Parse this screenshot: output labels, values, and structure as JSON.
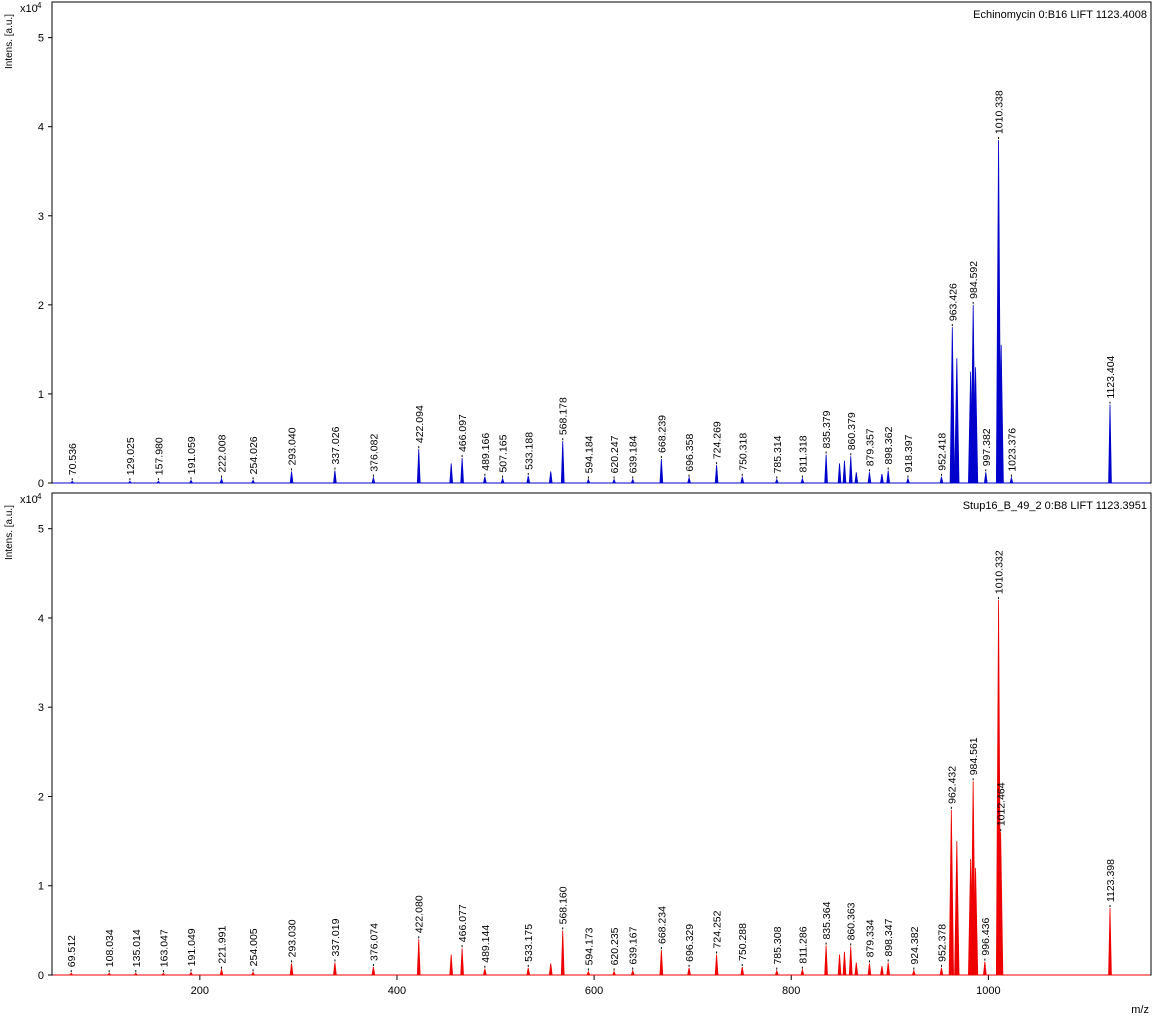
{
  "chart_data": [
    {
      "type": "line",
      "title": "Echinomycin 0:B16 LIFT 1123.4008",
      "ylabel": "Intens. [a.u.]",
      "y_multiplier": "x10",
      "y_multiplier_exp": "4",
      "xlim": [
        50,
        1165
      ],
      "ylim": [
        0,
        5.4
      ],
      "yticks": [
        0,
        1,
        2,
        3,
        4,
        5
      ],
      "color": "#0000cc",
      "peaks": [
        {
          "x": 70.536,
          "y": 0.02,
          "label": "70.536"
        },
        {
          "x": 129.025,
          "y": 0.02,
          "label": "129.025"
        },
        {
          "x": 157.98,
          "y": 0.02,
          "label": "157.980"
        },
        {
          "x": 191.059,
          "y": 0.03,
          "label": "191.059"
        },
        {
          "x": 222.008,
          "y": 0.05,
          "label": "222.008"
        },
        {
          "x": 254.026,
          "y": 0.03,
          "label": "254.026"
        },
        {
          "x": 293.04,
          "y": 0.13,
          "label": "293.040"
        },
        {
          "x": 337.026,
          "y": 0.14,
          "label": "337.026"
        },
        {
          "x": 376.082,
          "y": 0.06,
          "label": "376.082"
        },
        {
          "x": 422.094,
          "y": 0.38,
          "label": "422.094"
        },
        {
          "x": 455.0,
          "y": 0.22,
          "label": ""
        },
        {
          "x": 466.097,
          "y": 0.28,
          "label": "466.097"
        },
        {
          "x": 489.166,
          "y": 0.07,
          "label": "489.166"
        },
        {
          "x": 507.165,
          "y": 0.05,
          "label": "507.165"
        },
        {
          "x": 533.188,
          "y": 0.08,
          "label": "533.188"
        },
        {
          "x": 556.0,
          "y": 0.13,
          "label": ""
        },
        {
          "x": 568.178,
          "y": 0.47,
          "label": "568.178"
        },
        {
          "x": 594.184,
          "y": 0.04,
          "label": "594.184"
        },
        {
          "x": 620.247,
          "y": 0.04,
          "label": "620.247"
        },
        {
          "x": 639.184,
          "y": 0.04,
          "label": "639.184"
        },
        {
          "x": 668.239,
          "y": 0.27,
          "label": "668.239"
        },
        {
          "x": 696.358,
          "y": 0.06,
          "label": "696.358"
        },
        {
          "x": 724.269,
          "y": 0.2,
          "label": "724.269"
        },
        {
          "x": 750.318,
          "y": 0.07,
          "label": "750.318"
        },
        {
          "x": 785.314,
          "y": 0.04,
          "label": "785.314"
        },
        {
          "x": 811.318,
          "y": 0.05,
          "label": "811.318"
        },
        {
          "x": 835.379,
          "y": 0.32,
          "label": "835.379"
        },
        {
          "x": 849.0,
          "y": 0.22,
          "label": ""
        },
        {
          "x": 854.0,
          "y": 0.25,
          "label": ""
        },
        {
          "x": 860.379,
          "y": 0.3,
          "label": "860.379"
        },
        {
          "x": 866.0,
          "y": 0.12,
          "label": ""
        },
        {
          "x": 879.357,
          "y": 0.12,
          "label": "879.357"
        },
        {
          "x": 892.0,
          "y": 0.1,
          "label": ""
        },
        {
          "x": 898.362,
          "y": 0.14,
          "label": "898.362"
        },
        {
          "x": 918.397,
          "y": 0.05,
          "label": "918.397"
        },
        {
          "x": 952.418,
          "y": 0.07,
          "label": "952.418"
        },
        {
          "x": 963.426,
          "y": 1.75,
          "label": "963.426"
        },
        {
          "x": 968.0,
          "y": 1.4,
          "label": ""
        },
        {
          "x": 982.0,
          "y": 1.25,
          "label": ""
        },
        {
          "x": 984.592,
          "y": 2.0,
          "label": "984.592"
        },
        {
          "x": 987.0,
          "y": 1.3,
          "label": ""
        },
        {
          "x": 997.382,
          "y": 0.12,
          "label": "997.382"
        },
        {
          "x": 1010.338,
          "y": 3.85,
          "label": "1010.338"
        },
        {
          "x": 1013.0,
          "y": 1.55,
          "label": ""
        },
        {
          "x": 1023.376,
          "y": 0.06,
          "label": "1023.376"
        },
        {
          "x": 1123.404,
          "y": 0.88,
          "label": "1123.404"
        }
      ]
    },
    {
      "type": "line",
      "title": "Stup16_B_49_2 0:B8 LIFT 1123.3951",
      "ylabel": "Intens. [a.u.]",
      "y_multiplier": "x10",
      "y_multiplier_exp": "4",
      "xlabel": "m/z",
      "xlim": [
        50,
        1165
      ],
      "ylim": [
        0,
        5.4
      ],
      "yticks": [
        0,
        1,
        2,
        3,
        4,
        5
      ],
      "xticks": [
        200,
        400,
        600,
        800,
        1000
      ],
      "color": "#ee0000",
      "peaks": [
        {
          "x": 69.512,
          "y": 0.02,
          "label": "69.512"
        },
        {
          "x": 108.034,
          "y": 0.02,
          "label": "108.034"
        },
        {
          "x": 135.014,
          "y": 0.02,
          "label": "135.014"
        },
        {
          "x": 163.047,
          "y": 0.02,
          "label": "163.047"
        },
        {
          "x": 191.049,
          "y": 0.03,
          "label": "191.049"
        },
        {
          "x": 221.991,
          "y": 0.06,
          "label": "221.991"
        },
        {
          "x": 254.005,
          "y": 0.03,
          "label": "254.005"
        },
        {
          "x": 293.03,
          "y": 0.13,
          "label": "293.030"
        },
        {
          "x": 337.019,
          "y": 0.14,
          "label": "337.019"
        },
        {
          "x": 376.074,
          "y": 0.09,
          "label": "376.074"
        },
        {
          "x": 422.08,
          "y": 0.4,
          "label": "422.080"
        },
        {
          "x": 455.0,
          "y": 0.23,
          "label": ""
        },
        {
          "x": 466.077,
          "y": 0.3,
          "label": "466.077"
        },
        {
          "x": 489.144,
          "y": 0.07,
          "label": "489.144"
        },
        {
          "x": 533.175,
          "y": 0.08,
          "label": "533.175"
        },
        {
          "x": 556.0,
          "y": 0.13,
          "label": ""
        },
        {
          "x": 568.16,
          "y": 0.5,
          "label": "568.160"
        },
        {
          "x": 594.173,
          "y": 0.04,
          "label": "594.173"
        },
        {
          "x": 620.235,
          "y": 0.04,
          "label": "620.235"
        },
        {
          "x": 639.167,
          "y": 0.05,
          "label": "639.167"
        },
        {
          "x": 668.234,
          "y": 0.28,
          "label": "668.234"
        },
        {
          "x": 696.329,
          "y": 0.08,
          "label": "696.329"
        },
        {
          "x": 724.252,
          "y": 0.23,
          "label": "724.252"
        },
        {
          "x": 750.288,
          "y": 0.09,
          "label": "750.288"
        },
        {
          "x": 785.308,
          "y": 0.05,
          "label": "785.308"
        },
        {
          "x": 811.286,
          "y": 0.06,
          "label": "811.286"
        },
        {
          "x": 835.364,
          "y": 0.33,
          "label": "835.364"
        },
        {
          "x": 849.0,
          "y": 0.23,
          "label": ""
        },
        {
          "x": 854.0,
          "y": 0.26,
          "label": ""
        },
        {
          "x": 860.363,
          "y": 0.32,
          "label": "860.363"
        },
        {
          "x": 866.0,
          "y": 0.14,
          "label": ""
        },
        {
          "x": 879.334,
          "y": 0.13,
          "label": "879.334"
        },
        {
          "x": 892.0,
          "y": 0.1,
          "label": ""
        },
        {
          "x": 898.347,
          "y": 0.14,
          "label": "898.347"
        },
        {
          "x": 924.382,
          "y": 0.05,
          "label": "924.382"
        },
        {
          "x": 952.378,
          "y": 0.08,
          "label": "952.378"
        },
        {
          "x": 962.432,
          "y": 1.85,
          "label": "962.432"
        },
        {
          "x": 968.0,
          "y": 1.5,
          "label": ""
        },
        {
          "x": 982.0,
          "y": 1.3,
          "label": ""
        },
        {
          "x": 984.561,
          "y": 2.17,
          "label": "984.561"
        },
        {
          "x": 987.0,
          "y": 1.2,
          "label": ""
        },
        {
          "x": 996.436,
          "y": 0.15,
          "label": "996.436"
        },
        {
          "x": 1010.332,
          "y": 4.2,
          "label": "1010.332"
        },
        {
          "x": 1012.464,
          "y": 1.6,
          "label": "1012.464"
        },
        {
          "x": 1123.398,
          "y": 0.75,
          "label": "1123.398"
        }
      ]
    }
  ]
}
